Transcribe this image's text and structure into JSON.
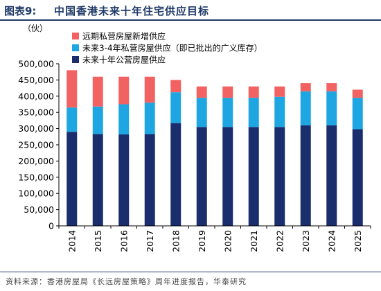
{
  "header": {
    "figure_no": "图表9:",
    "title": "中国香港未来十年住宅供应目标"
  },
  "footer": {
    "source": "资料来源：香港房屋局《长远房屋策略》周年进度报告，华泰研究"
  },
  "colors": {
    "public": "#1a2e6e",
    "private_short": "#1ea6e3",
    "private_long": "#f26262",
    "accent": "#1f3a68"
  },
  "chart_data": {
    "type": "bar",
    "stacked": true,
    "unit": "（伙）",
    "categories": [
      "2014",
      "2015",
      "2016",
      "2017",
      "2018",
      "2019",
      "2020",
      "2021",
      "2022",
      "2023",
      "2024",
      "2025"
    ],
    "ylim": [
      0,
      500000
    ],
    "yticks": [
      "0",
      "50,000",
      "100,000",
      "150,000",
      "200,000",
      "250,000",
      "300,000",
      "350,000",
      "400,000",
      "450,000",
      "500,000"
    ],
    "series": [
      {
        "name": "未来十年公营房屋供应",
        "color_key": "public",
        "values": [
          290000,
          283000,
          282000,
          283000,
          317000,
          305000,
          305000,
          305000,
          305000,
          310000,
          310000,
          298000
        ]
      },
      {
        "name": "未来3-4年私营房屋供应（即已批出的广义库存）",
        "color_key": "private_short",
        "values": [
          75000,
          85000,
          93000,
          97000,
          95000,
          90000,
          90000,
          90000,
          93000,
          105000,
          105000,
          97000
        ]
      },
      {
        "name": "远期私营房屋新增供应",
        "color_key": "private_long",
        "values": [
          115000,
          92000,
          85000,
          80000,
          38000,
          35000,
          35000,
          35000,
          32000,
          25000,
          25000,
          25000
        ]
      }
    ],
    "legend_order": [
      2,
      1,
      0
    ],
    "legend_position": "top-left",
    "grid": false
  }
}
